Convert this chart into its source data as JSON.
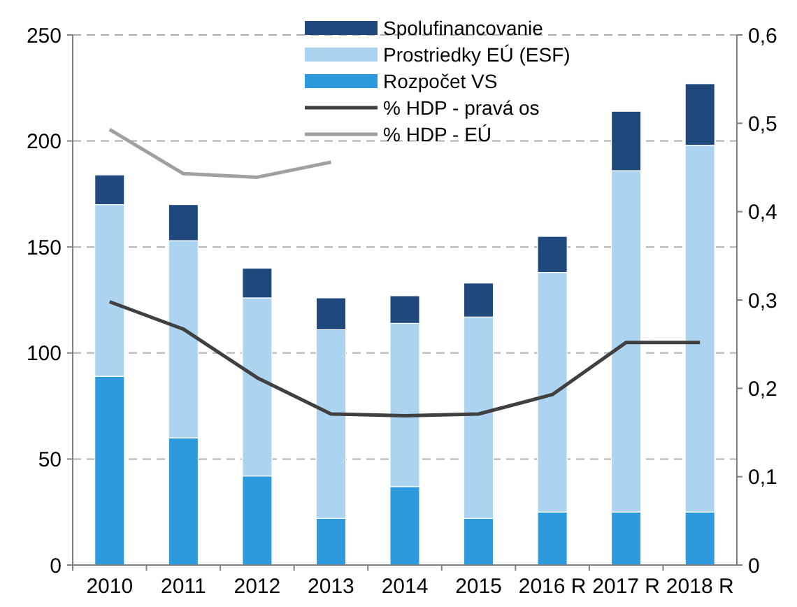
{
  "chart_data": {
    "type": "bar",
    "stacked": true,
    "categories": [
      "2010",
      "2011",
      "2012",
      "2013",
      "2014",
      "2015",
      "2016 R",
      "2017 R",
      "2018 R"
    ],
    "series": [
      {
        "name": "Rozpočet VS",
        "color": "#2e9ade",
        "values": [
          89,
          60,
          42,
          22,
          37,
          22,
          25,
          25,
          25
        ]
      },
      {
        "name": "Prostriedky EÚ (ESF)",
        "color": "#acd4f1",
        "values": [
          81,
          93,
          84,
          89,
          77,
          95,
          113,
          161,
          173
        ]
      },
      {
        "name": "Spolufinancovanie",
        "color": "#1f497d",
        "values": [
          14,
          17,
          14,
          15,
          13,
          16,
          17,
          28,
          29
        ]
      },
      {
        "name": "% HDP - pravá os",
        "type": "line",
        "axis": "y2",
        "color": "#404040",
        "values": [
          0.298,
          0.267,
          0.212,
          0.171,
          0.169,
          0.171,
          0.193,
          0.252,
          0.252
        ]
      },
      {
        "name": "% HDP - EÚ",
        "type": "line",
        "axis": "y2",
        "color": "#a0a0a0",
        "values": [
          0.493,
          0.443,
          0.439,
          0.456,
          null,
          null,
          null,
          null,
          null
        ]
      }
    ],
    "ylim": [
      0,
      250
    ],
    "yticks": [
      0,
      50,
      100,
      150,
      200,
      250
    ],
    "y2lim": [
      0,
      0.6
    ],
    "y2ticks": [
      {
        "value": 0,
        "label": "0"
      },
      {
        "value": 0.1,
        "label": "0,1"
      },
      {
        "value": 0.2,
        "label": "0,2"
      },
      {
        "value": 0.3,
        "label": "0,3"
      },
      {
        "value": 0.4,
        "label": "0,4"
      },
      {
        "value": 0.5,
        "label": "0,5"
      },
      {
        "value": 0.6,
        "label": "0,6"
      }
    ],
    "grid": "y",
    "legend": "top right",
    "line_style": "solid",
    "marker": "none"
  }
}
